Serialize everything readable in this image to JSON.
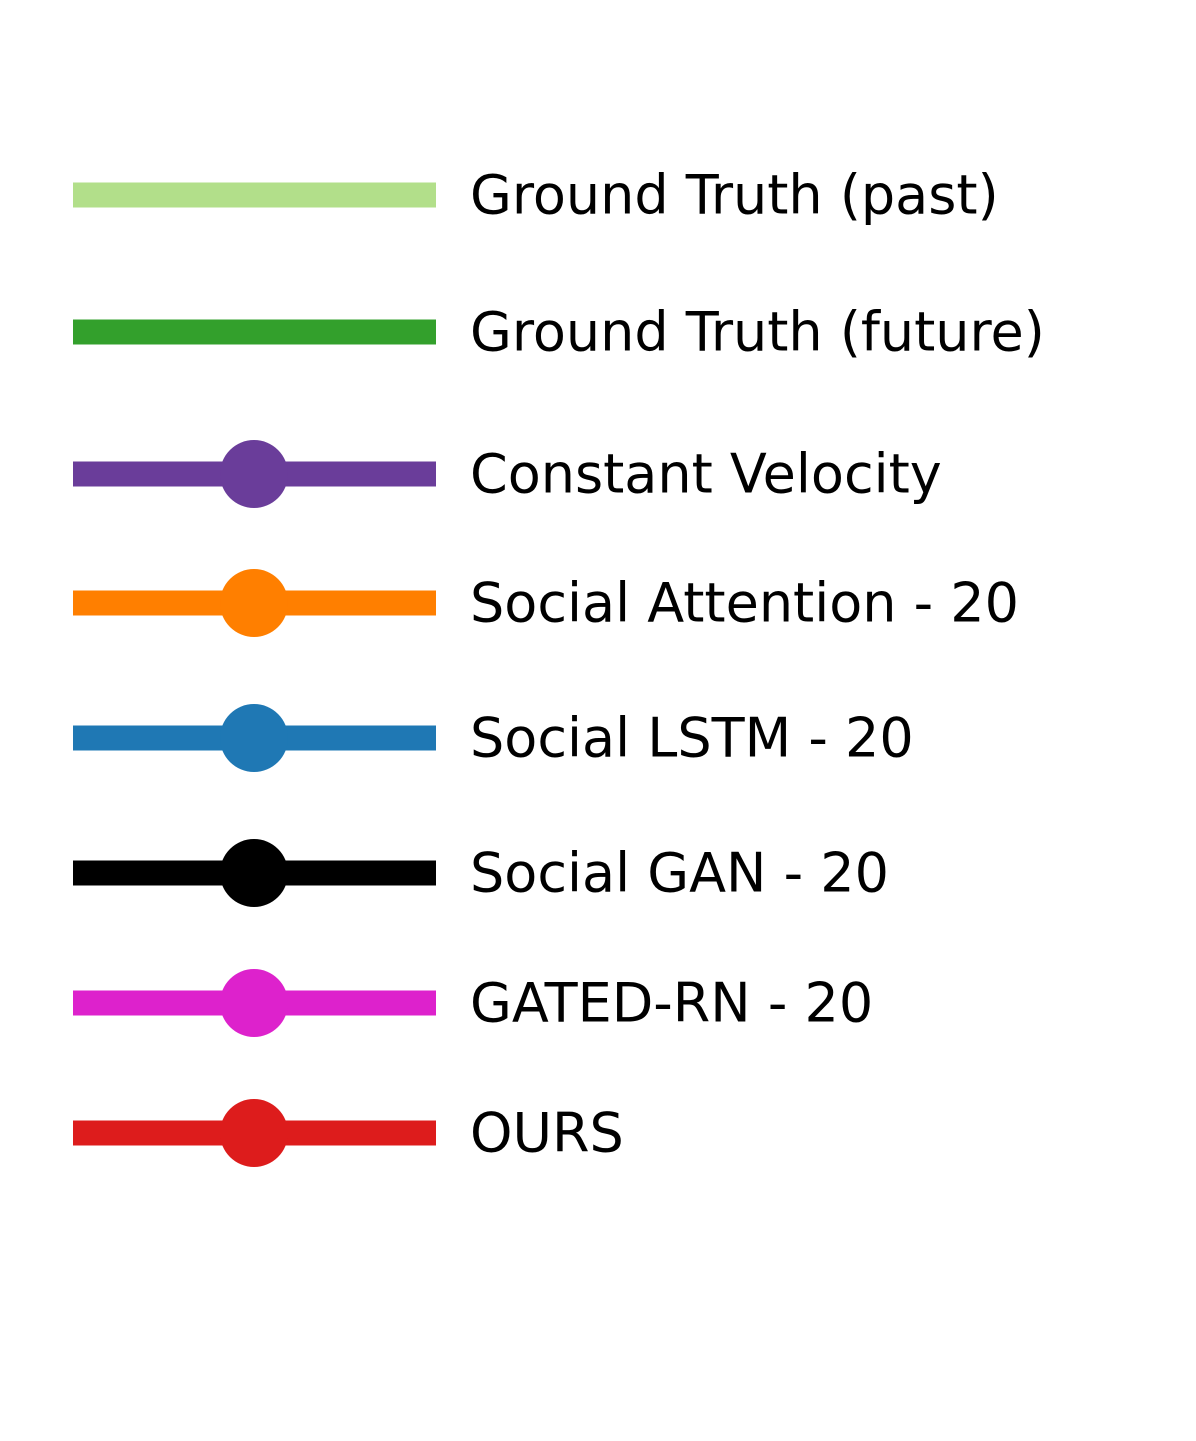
{
  "legend": {
    "items": [
      {
        "label": "Ground Truth (past)",
        "color": "#b2df8a",
        "marker": "none",
        "icon": "line-icon"
      },
      {
        "label": "Ground Truth (future)",
        "color": "#33a02c",
        "marker": "none",
        "icon": "line-icon"
      },
      {
        "label": "Constant Velocity",
        "color": "#6a3d9a",
        "marker": "circle",
        "icon": "line-circle-marker-icon"
      },
      {
        "label": "Social Attention - 20",
        "color": "#ff7f00",
        "marker": "circle",
        "icon": "line-circle-marker-icon"
      },
      {
        "label": "Social LSTM - 20",
        "color": "#1f78b4",
        "marker": "circle",
        "icon": "line-circle-marker-icon"
      },
      {
        "label": "Social GAN - 20",
        "color": "#000000",
        "marker": "circle",
        "icon": "line-circle-marker-icon"
      },
      {
        "label": "GATED-RN - 20",
        "color": "#dd22cc",
        "marker": "circle",
        "icon": "line-circle-marker-icon"
      },
      {
        "label": "OURS",
        "color": "#dd1c1c",
        "marker": "circle",
        "icon": "line-circle-marker-icon"
      }
    ]
  }
}
